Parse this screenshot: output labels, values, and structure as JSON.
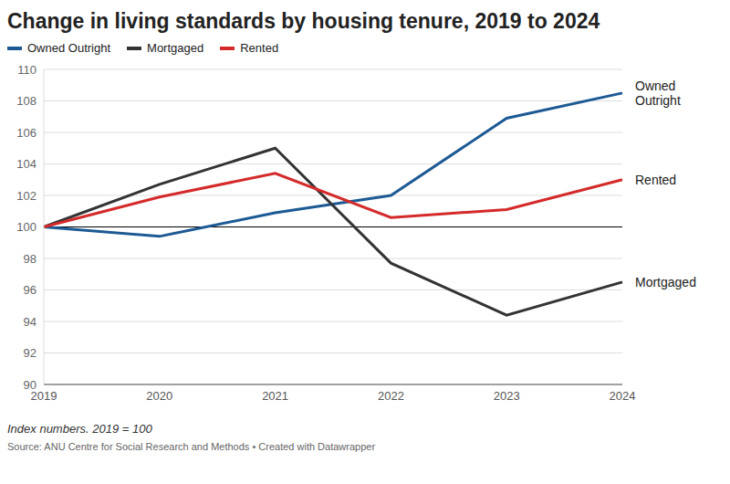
{
  "chart_data": {
    "type": "line",
    "title": "Change in living standards by housing tenure, 2019 to 2024",
    "categories": [
      "2019",
      "2020",
      "2021",
      "2022",
      "2023",
      "2024"
    ],
    "series": [
      {
        "name": "Owned Outright",
        "color": "#1d5a94",
        "values": [
          100,
          99.4,
          100.9,
          102.0,
          106.9,
          108.5
        ]
      },
      {
        "name": "Mortgaged",
        "color": "#333333",
        "values": [
          100,
          102.7,
          105.0,
          97.7,
          94.4,
          96.5
        ]
      },
      {
        "name": "Rented",
        "color": "#d42a2a",
        "values": [
          100,
          101.9,
          103.4,
          100.6,
          101.1,
          103.0
        ]
      }
    ],
    "ylim": [
      90,
      110
    ],
    "yticks": [
      90,
      92,
      94,
      96,
      98,
      100,
      102,
      104,
      106,
      108,
      110
    ],
    "grid": true,
    "legend": "top",
    "baseline": 100,
    "note": "Index numbers. 2019 = 100",
    "source": "Source: ANU Centre for Social Research and Methods • Created with Datawrapper"
  }
}
